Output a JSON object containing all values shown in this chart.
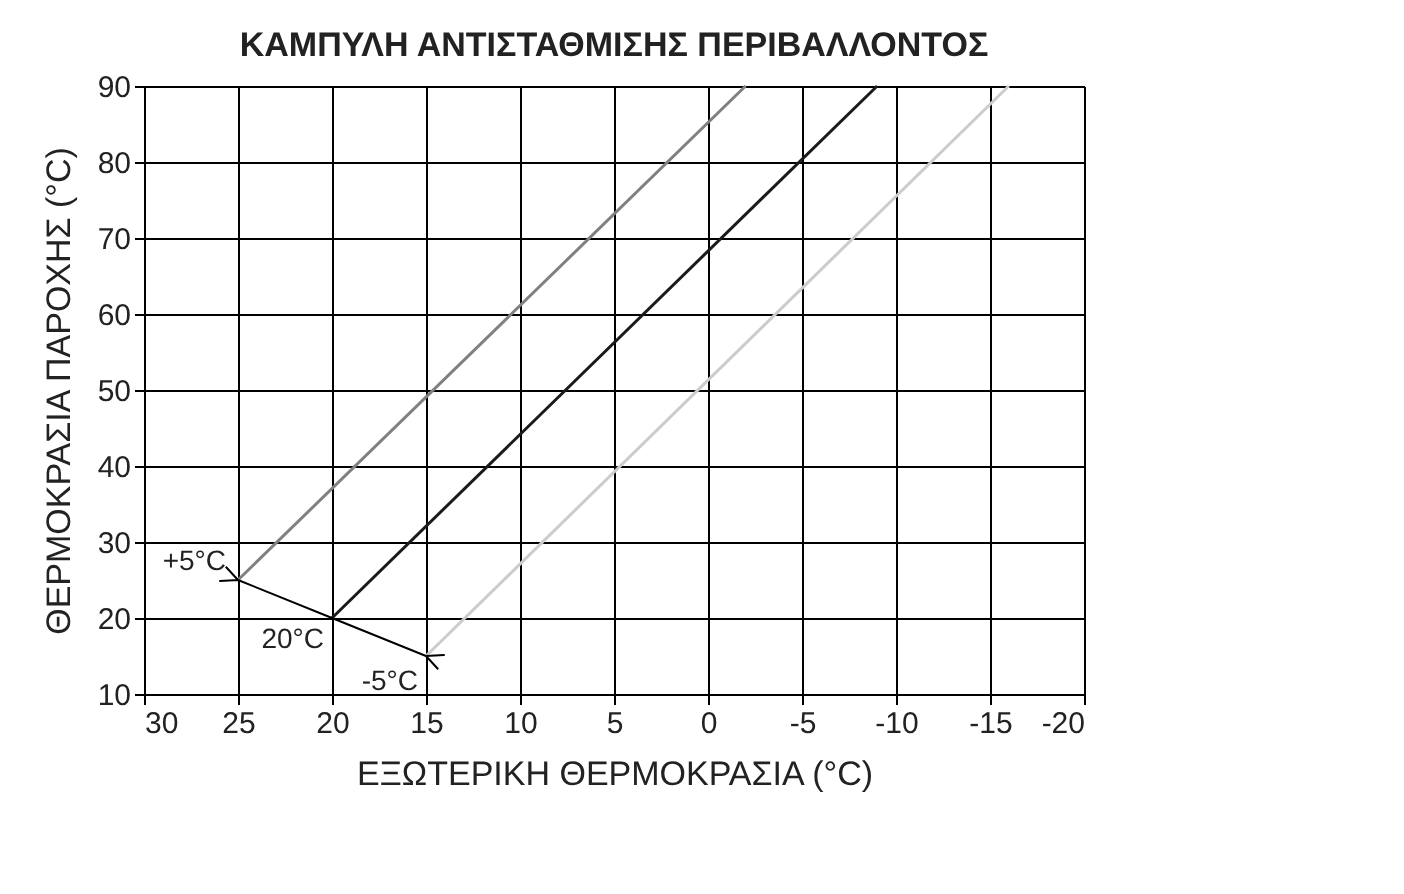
{
  "chart_data": {
    "type": "line",
    "title": "ΚΑΜΠΥΛΗ ΑΝΤΙΣΤΑΘΜΙΣΗΣ ΠΕΡΙΒΑΛΛΟΝΤΟΣ",
    "xlabel": "ΕΞΩΤΕΡΙΚΗ ΘΕΡΜΟΚΡΑΣΙΑ (°C)",
    "ylabel": "ΘΕΡΜΟΚΡΑΣΙΑ ΠΑΡΟΧΗΣ (°C)",
    "series": [
      {
        "color": "#808080",
        "x": [
          25,
          -2
        ],
        "values": [
          25,
          90
        ]
      },
      {
        "color": "#1a1a1a",
        "x": [
          20,
          -9
        ],
        "values": [
          20,
          90
        ]
      },
      {
        "color": "#cccccc",
        "x": [
          15,
          -16
        ],
        "values": [
          15,
          90
        ]
      }
    ],
    "annotations": [
      {
        "text": "+5°C",
        "x": 25,
        "y": 25
      },
      {
        "text": "20°C",
        "x": 20,
        "y": 20
      },
      {
        "text": "-5°C",
        "x": 15,
        "y": 15
      }
    ],
    "xlim": [
      30,
      -20
    ],
    "xticks": [
      30,
      25,
      20,
      15,
      10,
      5,
      0,
      -5,
      -10,
      -15,
      -20
    ],
    "ylim": [
      10,
      90
    ],
    "yticks": [
      10,
      20,
      30,
      40,
      50,
      60,
      70,
      80,
      90
    ],
    "grid": true,
    "marker": "none",
    "line_style": "solid"
  }
}
